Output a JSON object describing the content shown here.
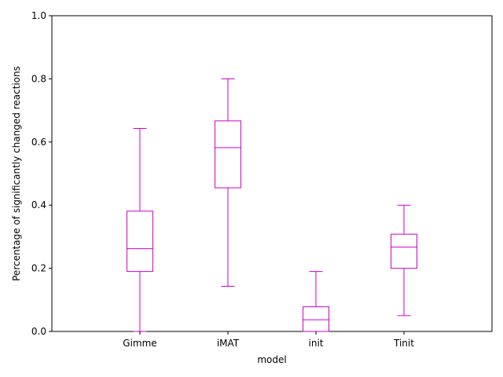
{
  "chart_data": {
    "type": "box",
    "title": "",
    "xlabel": "model",
    "ylabel": "Percentage of significantly changed reactions",
    "ylim": [
      0,
      1.0
    ],
    "yticks": [
      "0.0",
      "0.2",
      "0.4",
      "0.6",
      "0.8",
      "1.0"
    ],
    "grid": false,
    "color": "#cc00cc",
    "categories": [
      "Gimme",
      "iMAT",
      "init",
      "Tinit"
    ],
    "boxes": [
      {
        "category": "Gimme",
        "whisker_low": 0.0,
        "q1": 0.19,
        "median": 0.262,
        "q3": 0.381,
        "whisker_high": 0.643
      },
      {
        "category": "iMAT",
        "whisker_low": 0.143,
        "q1": 0.455,
        "median": 0.582,
        "q3": 0.667,
        "whisker_high": 0.8
      },
      {
        "category": "init",
        "whisker_low": 0.0,
        "q1": 0.0,
        "median": 0.037,
        "q3": 0.078,
        "whisker_high": 0.19
      },
      {
        "category": "Tinit",
        "whisker_low": 0.05,
        "q1": 0.2,
        "median": 0.267,
        "q3": 0.308,
        "whisker_high": 0.4
      }
    ]
  }
}
